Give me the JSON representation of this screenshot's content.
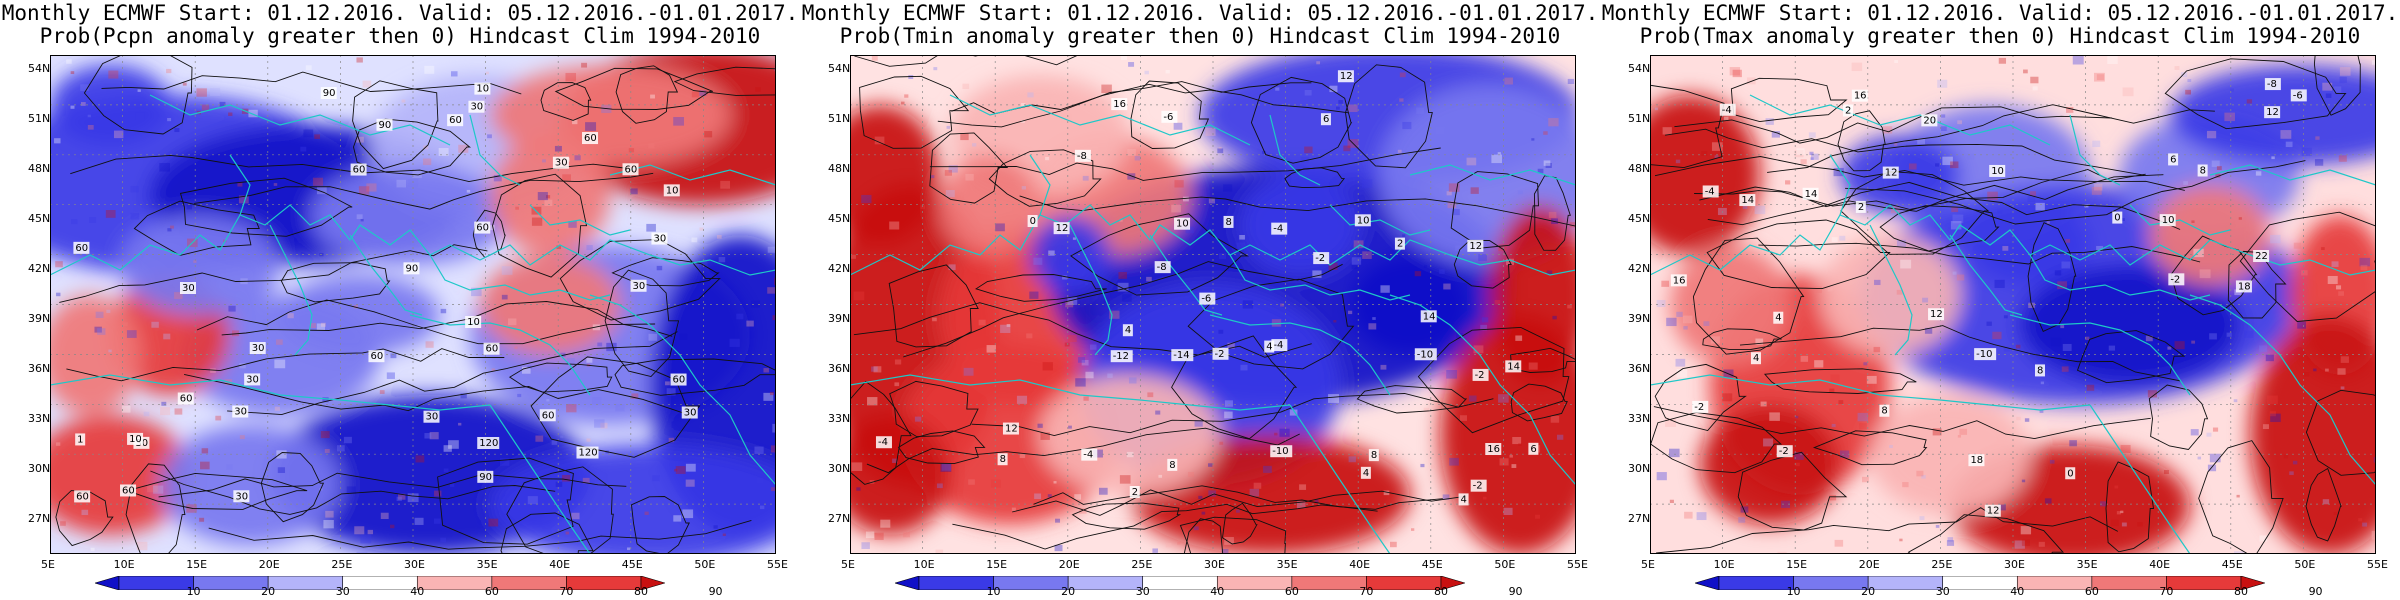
{
  "panels": [
    {
      "id": "pcpn",
      "title_line1": "Monthly ECMWF Start: 01.12.2016. Valid: 05.12.2016.-01.01.2017.",
      "title_line2": "Prob(Pcpn anomaly greater then 0) Hindcast Clim 1994-2010",
      "contour_labels": [
        "60",
        "60",
        "30",
        "60",
        "30",
        "120",
        "60",
        "30",
        "60",
        "30",
        "60",
        "90",
        "30",
        "60",
        "30",
        "90",
        "60",
        "30",
        "60",
        "90",
        "120",
        "60",
        "30",
        "60",
        "10",
        "30",
        "10",
        "1",
        "10",
        "10",
        "30",
        "60",
        "60",
        "30",
        "90",
        "30"
      ]
    },
    {
      "id": "tmin",
      "title_line1": "Monthly ECMWF Start: 01.12.2016. Valid: 05.12.2016.-01.01.2017.",
      "title_line2": "Prob(Tmin anomaly greater then 0) Hindcast Clim 1994-2010",
      "contour_labels": [
        "-14",
        "-12",
        "-10",
        "-8",
        "-6",
        "-4",
        "-2",
        "0",
        "2",
        "4",
        "6",
        "8",
        "10",
        "12",
        "14",
        "16",
        "-4",
        "-2",
        "-8",
        "-6",
        "-10",
        "-4",
        "-2",
        "2",
        "4",
        "6",
        "8",
        "10",
        "12",
        "14",
        "16",
        "12",
        "8",
        "4",
        "-4",
        "-2",
        "4",
        "8",
        "12"
      ]
    },
    {
      "id": "tmax",
      "title_line1": "Monthly ECMWF Start: 01.12.2016. Valid: 05.12.2016.-01.01.2017.",
      "title_line2": "Prob(Tmax anomaly greater then 0) Hindcast Clim 1994-2010",
      "contour_labels": [
        "-10",
        "-8",
        "-6",
        "-4",
        "-2",
        "0",
        "2",
        "-2",
        "-4",
        "0",
        "2",
        "4",
        "6",
        "8",
        "10",
        "12",
        "14",
        "16",
        "18",
        "20",
        "22",
        "12",
        "8",
        "4",
        "-2",
        "14",
        "16",
        "18",
        "12",
        "8",
        "10",
        "12"
      ]
    }
  ],
  "lat_labels": [
    "54N",
    "51N",
    "48N",
    "45N",
    "42N",
    "39N",
    "36N",
    "33N",
    "30N",
    "27N"
  ],
  "lon_labels": [
    "5E",
    "10E",
    "15E",
    "20E",
    "25E",
    "30E",
    "35E",
    "40E",
    "45E",
    "50E",
    "55E"
  ],
  "colorbar": {
    "labels": [
      "10",
      "20",
      "30",
      "40",
      "60",
      "70",
      "80",
      "90"
    ],
    "colors": [
      "#1010c8",
      "#3a3ae6",
      "#7878f0",
      "#b4b4fa",
      "#ffffff",
      "#fab4b4",
      "#f07878",
      "#e63a3a",
      "#c81010"
    ]
  }
}
